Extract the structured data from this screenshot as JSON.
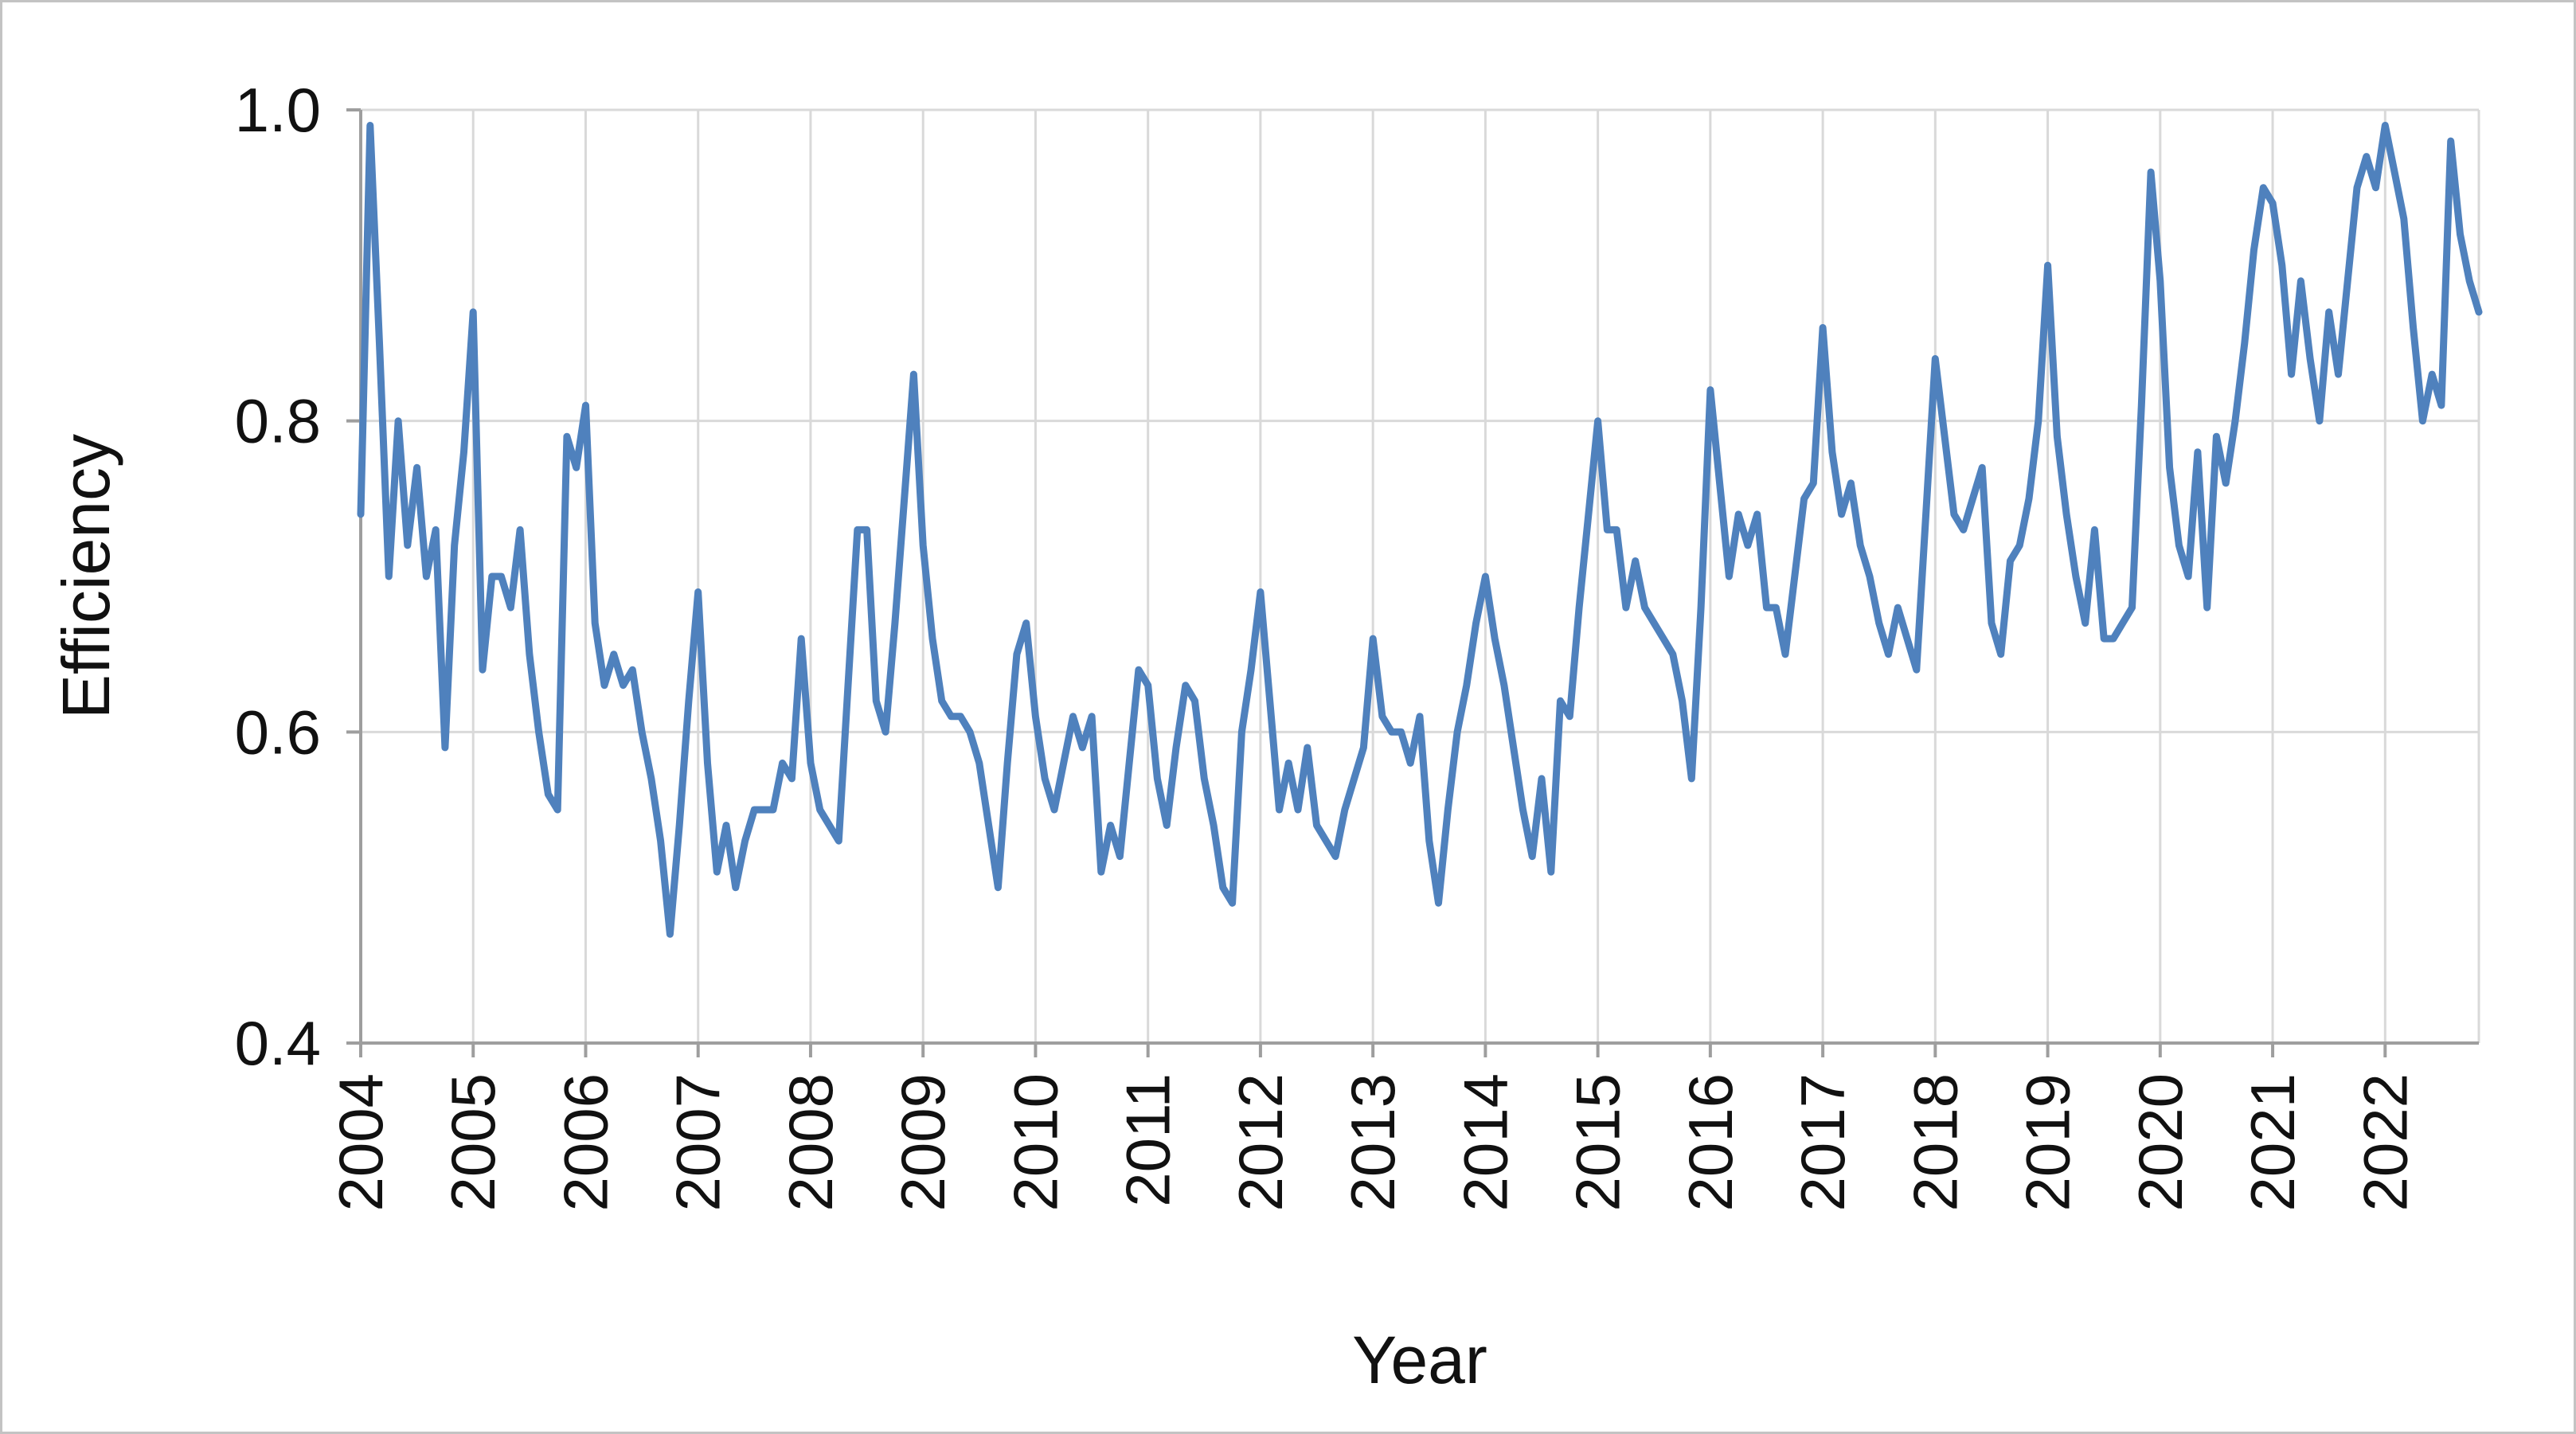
{
  "page": {
    "background": "#ffffff",
    "frame_color": "#c3c3c3"
  },
  "chart_data": {
    "type": "line",
    "title": "",
    "xlabel": "Year",
    "ylabel": "Efficiency",
    "x_start": "2004-01",
    "frequency": "monthly",
    "x_tick_labels": [
      "2004",
      "2005",
      "2006",
      "2007",
      "2008",
      "2009",
      "2010",
      "2011",
      "2012",
      "2013",
      "2014",
      "2015",
      "2016",
      "2017",
      "2018",
      "2019",
      "2020",
      "2021",
      "2022"
    ],
    "y_ticks": [
      0.4,
      0.6,
      0.8,
      1.0
    ],
    "y_tick_labels": [
      "0.4",
      "0.6",
      "0.8",
      "1.0"
    ],
    "ylim": [
      0.4,
      1.0
    ],
    "grid": "both",
    "legend": "none",
    "line_color": "#4f81bd",
    "gridline_color": "#d9d9d9",
    "axis_color": "#9e9e9e",
    "text_color": "#111111",
    "series": [
      {
        "name": "Efficiency",
        "values": [
          0.74,
          0.99,
          0.85,
          0.7,
          0.8,
          0.72,
          0.77,
          0.7,
          0.73,
          0.59,
          0.72,
          0.78,
          0.87,
          0.64,
          0.7,
          0.7,
          0.68,
          0.73,
          0.65,
          0.6,
          0.56,
          0.55,
          0.79,
          0.77,
          0.81,
          0.67,
          0.63,
          0.65,
          0.63,
          0.64,
          0.6,
          0.57,
          0.53,
          0.47,
          0.54,
          0.62,
          0.69,
          0.58,
          0.51,
          0.54,
          0.5,
          0.53,
          0.55,
          0.55,
          0.55,
          0.58,
          0.57,
          0.66,
          0.58,
          0.55,
          0.54,
          0.53,
          0.63,
          0.73,
          0.73,
          0.62,
          0.6,
          0.67,
          0.75,
          0.83,
          0.72,
          0.66,
          0.62,
          0.61,
          0.61,
          0.6,
          0.58,
          0.54,
          0.5,
          0.58,
          0.65,
          0.67,
          0.61,
          0.57,
          0.55,
          0.58,
          0.61,
          0.59,
          0.61,
          0.51,
          0.54,
          0.52,
          0.58,
          0.64,
          0.63,
          0.57,
          0.54,
          0.59,
          0.63,
          0.62,
          0.57,
          0.54,
          0.5,
          0.49,
          0.6,
          0.64,
          0.69,
          0.62,
          0.55,
          0.58,
          0.55,
          0.59,
          0.54,
          0.53,
          0.52,
          0.55,
          0.57,
          0.59,
          0.66,
          0.61,
          0.6,
          0.6,
          0.58,
          0.61,
          0.53,
          0.49,
          0.55,
          0.6,
          0.63,
          0.67,
          0.7,
          0.66,
          0.63,
          0.59,
          0.55,
          0.52,
          0.57,
          0.51,
          0.62,
          0.61,
          0.68,
          0.74,
          0.8,
          0.73,
          0.73,
          0.68,
          0.71,
          0.68,
          0.67,
          0.66,
          0.65,
          0.62,
          0.57,
          0.68,
          0.82,
          0.76,
          0.7,
          0.74,
          0.72,
          0.74,
          0.68,
          0.68,
          0.65,
          0.7,
          0.75,
          0.76,
          0.86,
          0.78,
          0.74,
          0.76,
          0.72,
          0.7,
          0.67,
          0.65,
          0.68,
          0.66,
          0.64,
          0.74,
          0.84,
          0.79,
          0.74,
          0.73,
          0.75,
          0.77,
          0.67,
          0.65,
          0.71,
          0.72,
          0.75,
          0.8,
          0.9,
          0.79,
          0.74,
          0.7,
          0.67,
          0.73,
          0.66,
          0.66,
          0.67,
          0.68,
          0.81,
          0.96,
          0.89,
          0.77,
          0.72,
          0.7,
          0.78,
          0.68,
          0.79,
          0.76,
          0.8,
          0.85,
          0.91,
          0.95,
          0.94,
          0.9,
          0.83,
          0.89,
          0.84,
          0.8,
          0.87,
          0.83,
          0.89,
          0.95,
          0.97,
          0.95,
          0.99,
          0.96,
          0.93,
          0.86,
          0.8,
          0.83,
          0.81,
          0.98,
          0.92,
          0.89,
          0.87
        ]
      }
    ]
  }
}
